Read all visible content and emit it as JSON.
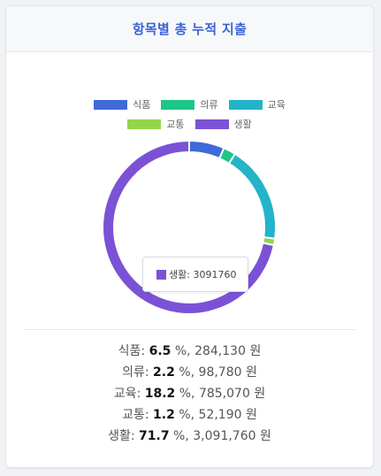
{
  "card": {
    "title": "항목별 총 누적 지출"
  },
  "tooltip": {
    "label": "생활",
    "value": "3091760",
    "color": "#7b52d6"
  },
  "chart_data": {
    "type": "doughnut",
    "categories": [
      "식품",
      "의류",
      "교육",
      "교통",
      "생활"
    ],
    "values": [
      284130,
      98780,
      785070,
      52190,
      3091760
    ],
    "colors": [
      "#3f6ad8",
      "#1ec687",
      "#23b4c9",
      "#94d64b",
      "#7b52d6"
    ],
    "legend_position": "top"
  },
  "summary": [
    {
      "label": "식품",
      "pct": "6.5",
      "unit": "%",
      "amount": "284,130",
      "currency": "원"
    },
    {
      "label": "의류",
      "pct": "2.2",
      "unit": "%",
      "amount": "98,780",
      "currency": "원"
    },
    {
      "label": "교육",
      "pct": "18.2",
      "unit": "%",
      "amount": "785,070",
      "currency": "원"
    },
    {
      "label": "교통",
      "pct": "1.2",
      "unit": "%",
      "amount": "52,190",
      "currency": "원"
    },
    {
      "label": "생활",
      "pct": "71.7",
      "unit": "%",
      "amount": "3,091,760",
      "currency": "원"
    }
  ]
}
